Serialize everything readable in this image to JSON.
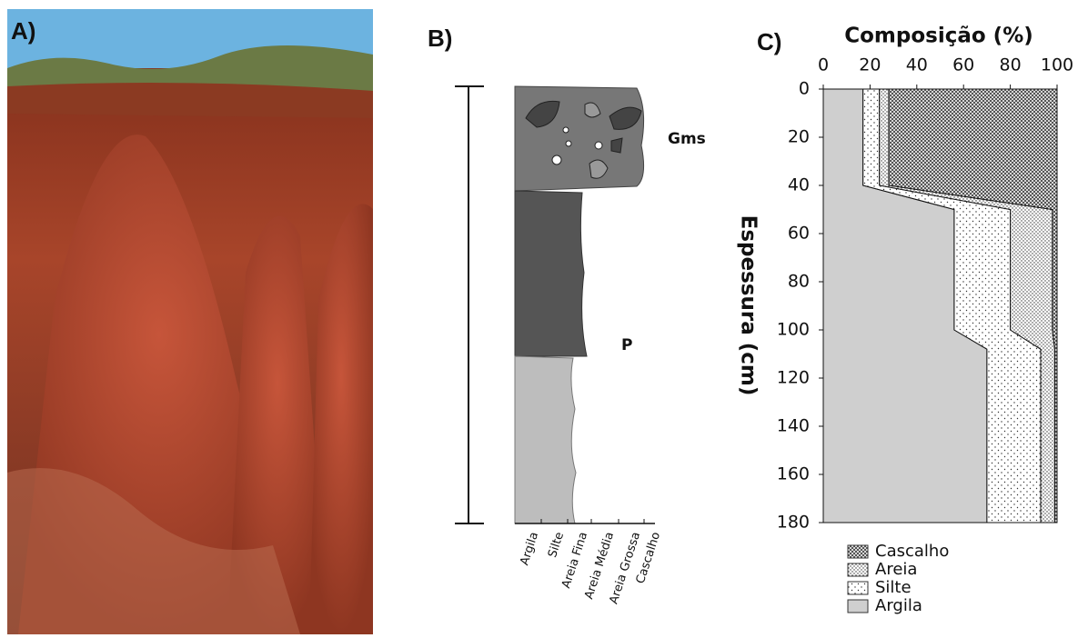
{
  "panels": {
    "a": {
      "label": "A)"
    },
    "b": {
      "label": "B)",
      "facies": [
        "Gms",
        "P"
      ],
      "grain_sizes": [
        "Argila",
        "Silte",
        "Areia Fina",
        "Areia Média",
        "Areia Grossa",
        "Cascalho"
      ]
    }
  },
  "chart_data": {
    "type": "stacked-area",
    "panel_label": "C)",
    "title": "Composição (%)",
    "y_label": "Espessura (cm)",
    "y": [
      0,
      40,
      50,
      100,
      108,
      180
    ],
    "series": [
      {
        "name": "Argila",
        "values": [
          17,
          17,
          56,
          56,
          70,
          70
        ]
      },
      {
        "name": "Silte",
        "values": [
          7,
          7,
          24,
          24,
          23,
          23
        ]
      },
      {
        "name": "Areia",
        "values": [
          4,
          4,
          18,
          18,
          6,
          6
        ]
      },
      {
        "name": "Cascalho",
        "values": [
          72,
          72,
          2,
          2,
          1,
          1
        ]
      }
    ],
    "xlim": [
      0,
      100
    ],
    "xticks": [
      0,
      20,
      40,
      60,
      80,
      100
    ],
    "ylim": [
      0,
      180
    ],
    "yticks": [
      0,
      20,
      40,
      60,
      80,
      100,
      120,
      140,
      160,
      180
    ]
  }
}
